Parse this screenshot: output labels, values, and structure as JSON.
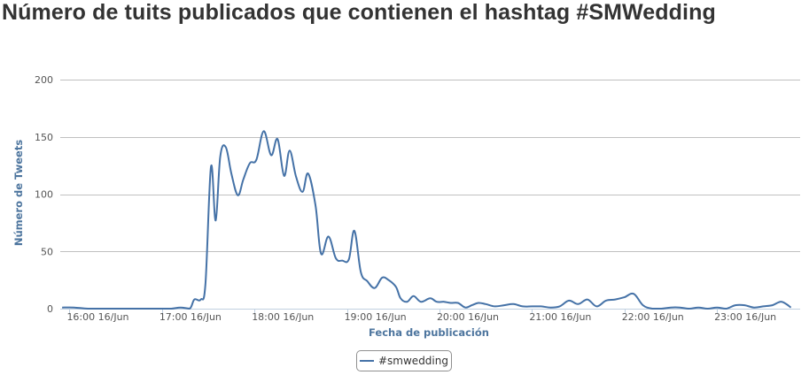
{
  "chart_data": {
    "type": "line",
    "title": "Número de tuits publicados que contienen el hashtag #SMWedding",
    "xlabel": "Fecha de publicación",
    "ylabel": "Número de Tweets",
    "ylim": [
      0,
      200
    ],
    "yticks": [
      0,
      50,
      100,
      150,
      200
    ],
    "xlim": [
      -0.1,
      7.9
    ],
    "xticks": [
      {
        "x": 0,
        "label": "16:00 16/Jun"
      },
      {
        "x": 1,
        "label": "17:00 16/Jun"
      },
      {
        "x": 2,
        "label": "18:00 16/Jun"
      },
      {
        "x": 3,
        "label": "19:00 16/Jun"
      },
      {
        "x": 4,
        "label": "20:00 16/Jun"
      },
      {
        "x": 5,
        "label": "21:00 16/Jun"
      },
      {
        "x": 6,
        "label": "22:00 16/Jun"
      },
      {
        "x": 7,
        "label": "23:00 16/Jun"
      }
    ],
    "grid": true,
    "legend_position": "bottom-center",
    "series": [
      {
        "name": "#smwedding",
        "color": "#4572a7",
        "x": [
          -0.08,
          0.05,
          0.2,
          0.4,
          0.6,
          0.8,
          1.0,
          1.1,
          1.2,
          1.3,
          1.35,
          1.42,
          1.47,
          1.53,
          1.58,
          1.63,
          1.69,
          1.75,
          1.82,
          1.88,
          1.95,
          2.02,
          2.1,
          2.18,
          2.25,
          2.32,
          2.38,
          2.45,
          2.52,
          2.58,
          2.66,
          2.72,
          2.8,
          2.88,
          2.95,
          3.02,
          3.08,
          3.15,
          3.22,
          3.3,
          3.38,
          3.45,
          3.53,
          3.58,
          3.65,
          3.72,
          3.8,
          3.9,
          3.97,
          4.05,
          4.12,
          4.2,
          4.28,
          4.35,
          4.42,
          4.5,
          4.6,
          4.7,
          4.8,
          4.9,
          5.0,
          5.1,
          5.2,
          5.3,
          5.4,
          5.5,
          5.6,
          5.7,
          5.8,
          5.9,
          6.0,
          6.1,
          6.2,
          6.3,
          6.4,
          6.5,
          6.6,
          6.7,
          6.8,
          6.9,
          7.0,
          7.1,
          7.2,
          7.3,
          7.4,
          7.5,
          7.6,
          7.7,
          7.8
        ],
        "values": [
          1,
          1,
          0,
          0,
          0,
          0,
          0,
          0,
          1,
          0,
          8,
          8,
          22,
          124,
          77,
          133,
          141,
          118,
          99,
          113,
          127,
          130,
          155,
          134,
          148,
          116,
          138,
          115,
          102,
          118,
          90,
          48,
          63,
          44,
          42,
          43,
          68,
          32,
          24,
          18,
          27,
          25,
          19,
          9,
          6,
          11,
          6,
          9,
          6,
          6,
          5,
          5,
          1,
          3,
          5,
          4,
          2,
          3,
          4,
          2,
          2,
          2,
          1,
          2,
          7,
          4,
          8,
          2,
          7,
          8,
          10,
          13,
          3,
          0,
          0,
          1,
          1,
          0,
          1,
          0,
          1,
          0,
          3,
          3,
          1,
          2,
          3,
          6,
          1
        ]
      }
    ]
  }
}
